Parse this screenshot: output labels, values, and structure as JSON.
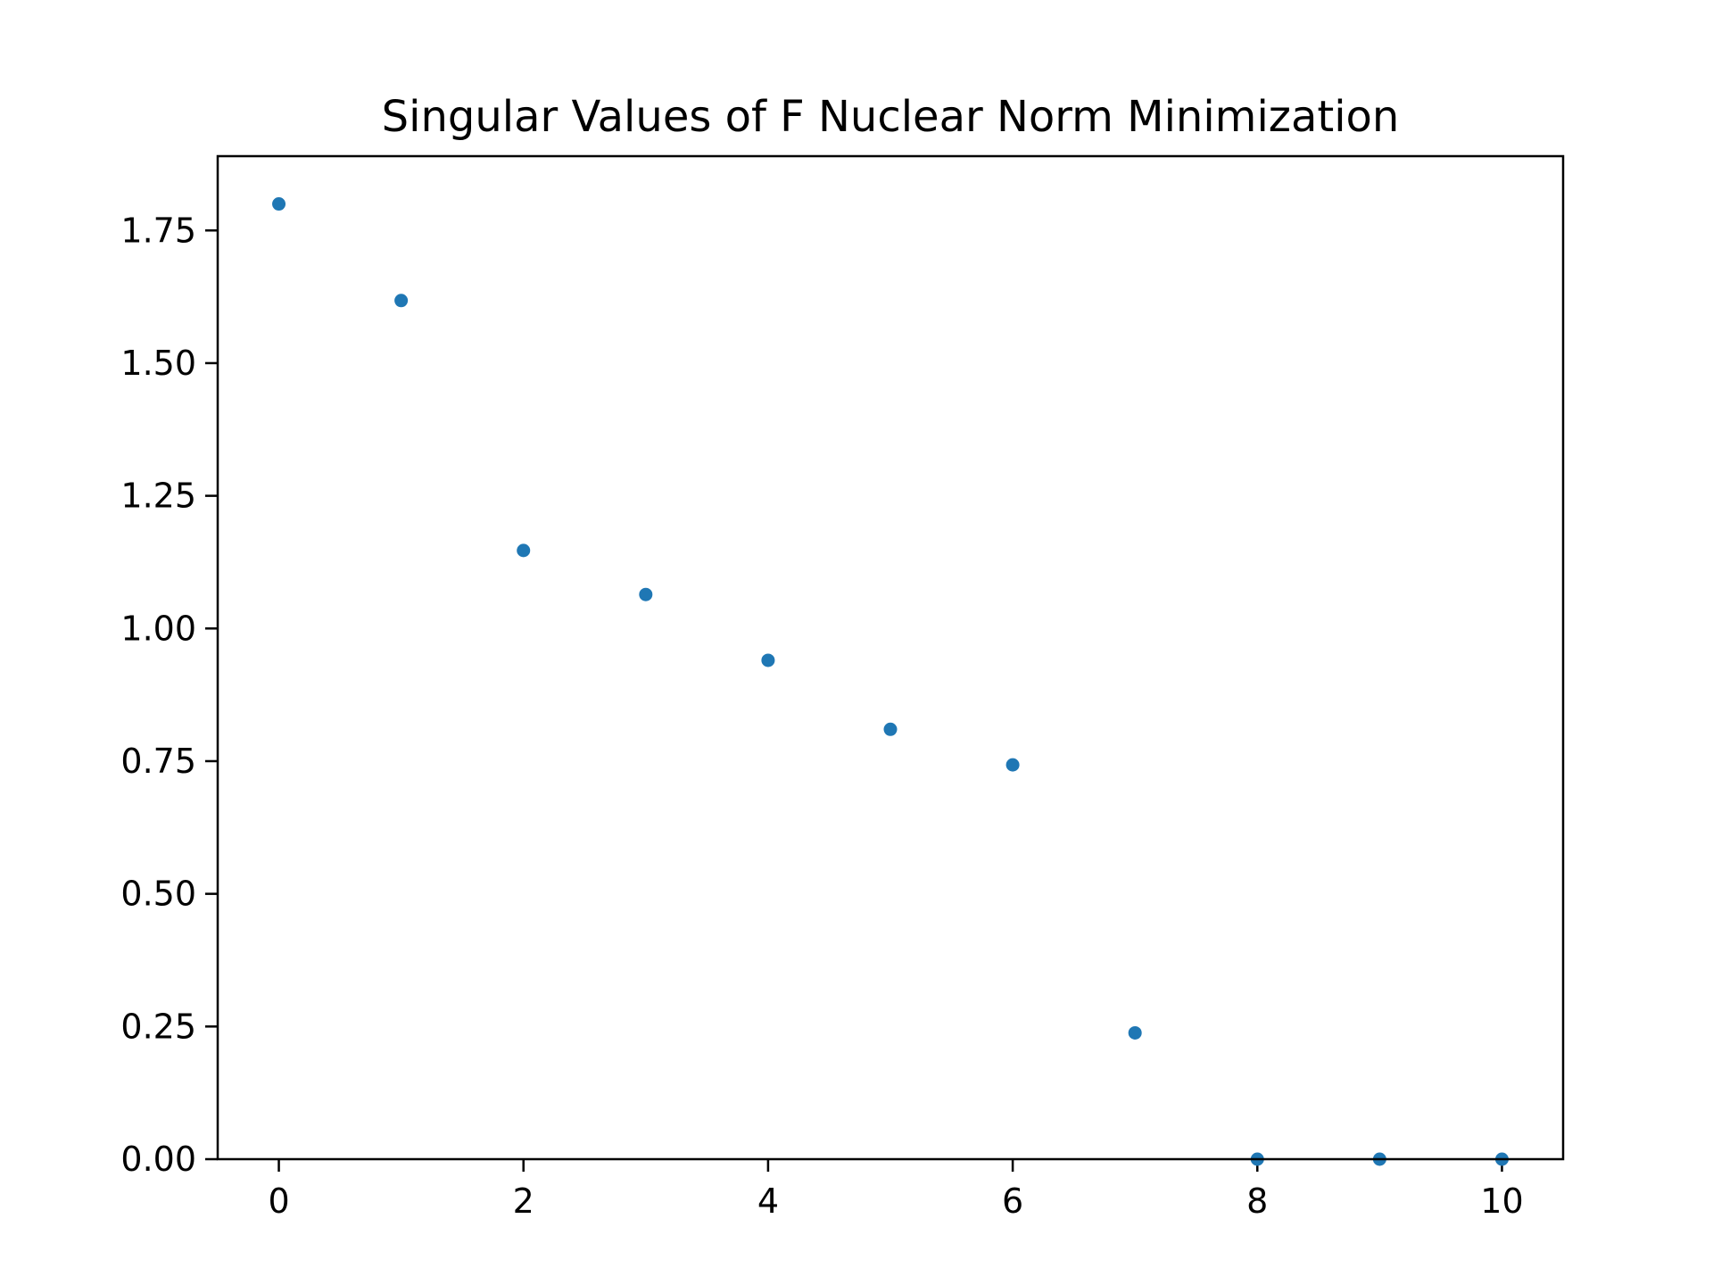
{
  "chart_data": {
    "type": "scatter",
    "title": "Singular Values of F Nuclear Norm Minimization",
    "xlabel": "",
    "ylabel": "",
    "x": [
      0,
      1,
      2,
      3,
      4,
      5,
      6,
      7,
      8,
      9,
      10
    ],
    "y": [
      1.8,
      1.618,
      1.147,
      1.064,
      0.94,
      0.81,
      0.743,
      0.238,
      0.0,
      0.0,
      0.0
    ],
    "xlim": [
      -0.5,
      10.5
    ],
    "ylim": [
      0.0,
      1.89
    ],
    "xticks": [
      0,
      2,
      4,
      6,
      8,
      10
    ],
    "xtick_labels": [
      "0",
      "2",
      "4",
      "6",
      "8",
      "10"
    ],
    "yticks": [
      0.0,
      0.25,
      0.5,
      0.75,
      1.0,
      1.25,
      1.5,
      1.75
    ],
    "ytick_labels": [
      "0.00",
      "0.25",
      "0.50",
      "0.75",
      "1.00",
      "1.25",
      "1.50",
      "1.75"
    ],
    "grid": false,
    "legend": "none",
    "marker_color": "#1f77b4"
  }
}
